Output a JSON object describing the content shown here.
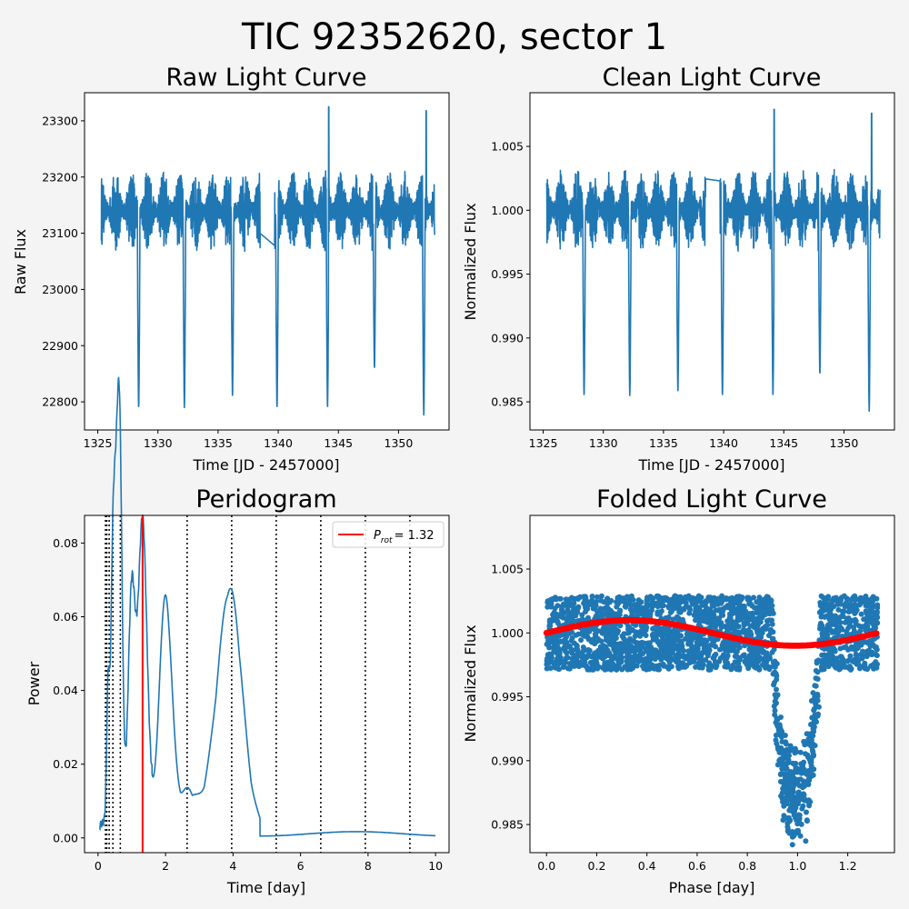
{
  "figure": {
    "suptitle": "TIC 92352620, sector 1"
  },
  "chart_data": [
    {
      "type": "line",
      "title": "Raw Light Curve",
      "xlabel": "Time [JD - 2457000]",
      "ylabel": "Raw Flux",
      "xlim": [
        1323.9,
        1354.2
      ],
      "ylim": [
        22750,
        23350
      ],
      "xticks": [
        1325,
        1330,
        1335,
        1340,
        1345,
        1350
      ],
      "yticks": [
        22800,
        22900,
        23000,
        23100,
        23200,
        23300
      ],
      "segments": [
        [
          1325.3,
          1338.5
        ],
        [
          1339.7,
          1353.0
        ]
      ],
      "baseline": 23140,
      "noise_range": [
        23070,
        23215
      ],
      "eclipse_times": [
        1328.4,
        1332.2,
        1336.2,
        1339.9,
        1344.1,
        1348.0,
        1352.1
      ],
      "eclipse_minima": [
        22790,
        22790,
        22810,
        22790,
        22790,
        22860,
        22775
      ],
      "flare_peaks": [
        [
          1344.2,
          23325
        ],
        [
          1352.3,
          23318
        ]
      ],
      "color": "#1f77b4"
    },
    {
      "type": "line",
      "title": "Clean Light Curve",
      "xlabel": "Time [JD - 2457000]",
      "ylabel": "Normalized Flux",
      "xlim": [
        1323.9,
        1354.2
      ],
      "ylim": [
        0.9828,
        1.0092
      ],
      "xticks": [
        1325,
        1330,
        1335,
        1340,
        1345,
        1350
      ],
      "yticks": [
        0.985,
        0.99,
        0.995,
        1.0,
        1.005
      ],
      "segments": [
        [
          1325.3,
          1338.5
        ],
        [
          1339.7,
          1353.0
        ]
      ],
      "baseline": 1.0,
      "noise_range": [
        0.9968,
        1.0032
      ],
      "eclipse_times": [
        1328.4,
        1332.2,
        1336.2,
        1339.9,
        1344.1,
        1348.0,
        1352.1
      ],
      "eclipse_minima": [
        0.9855,
        0.9855,
        0.9858,
        0.9855,
        0.9855,
        0.9872,
        0.9842
      ],
      "flare_peaks": [
        [
          1344.2,
          1.0079
        ],
        [
          1352.3,
          1.0076
        ]
      ],
      "color": "#1f77b4"
    },
    {
      "type": "line",
      "title": "Peridogram",
      "xlabel": "Time [day]",
      "ylabel": "Power",
      "xlim": [
        -0.4,
        10.4
      ],
      "ylim": [
        -0.004,
        0.0875
      ],
      "xticks": [
        0,
        2,
        4,
        6,
        8,
        10
      ],
      "yticks": [
        0.0,
        0.02,
        0.04,
        0.06,
        0.08
      ],
      "peaks": [
        {
          "x": 0.3,
          "y": 0.038
        },
        {
          "x": 0.42,
          "y": 0.05
        },
        {
          "x": 0.5,
          "y": 0.056
        },
        {
          "x": 0.6,
          "y": 0.058
        },
        {
          "x": 0.66,
          "y": 0.066
        },
        {
          "x": 1.0,
          "y": 0.064
        },
        {
          "x": 1.32,
          "y": 0.083
        },
        {
          "x": 2.0,
          "y": 0.063
        },
        {
          "x": 2.65,
          "y": 0.01
        },
        {
          "x": 3.35,
          "y": 0.007
        },
        {
          "x": 3.92,
          "y": 0.064
        },
        {
          "x": 6.6,
          "y": 0.002
        },
        {
          "x": 9.2,
          "y": 0.0018
        }
      ],
      "prot": 1.32,
      "prot_color": "#ff0000",
      "harmonics": [
        0.22,
        0.26,
        0.33,
        0.44,
        0.66,
        2.64,
        3.96,
        5.28,
        6.6,
        7.92,
        9.24
      ],
      "legend": {
        "label_main": "P",
        "label_sub": "rot",
        "label_value": "= 1.32",
        "placement": "upper right"
      },
      "color": "#1f77b4"
    },
    {
      "type": "scatter",
      "title": "Folded Light Curve",
      "xlabel": "Phase [day]",
      "ylabel": "Normalized Flux",
      "xlim": [
        -0.066,
        1.386
      ],
      "ylim": [
        0.9828,
        1.0092
      ],
      "xticks": [
        0.0,
        0.2,
        0.4,
        0.6,
        0.8,
        1.0,
        1.2
      ],
      "yticks": [
        0.985,
        0.99,
        0.995,
        1.0,
        1.005
      ],
      "period": 1.32,
      "baseline": 1.0,
      "noise_range": [
        0.9972,
        1.003
      ],
      "eclipse_phase": [
        0.9,
        1.09
      ],
      "eclipse_depth_min": 0.9842,
      "model_amplitude": 0.001,
      "model_color": "#ff0000",
      "color": "#1f77b4"
    }
  ]
}
